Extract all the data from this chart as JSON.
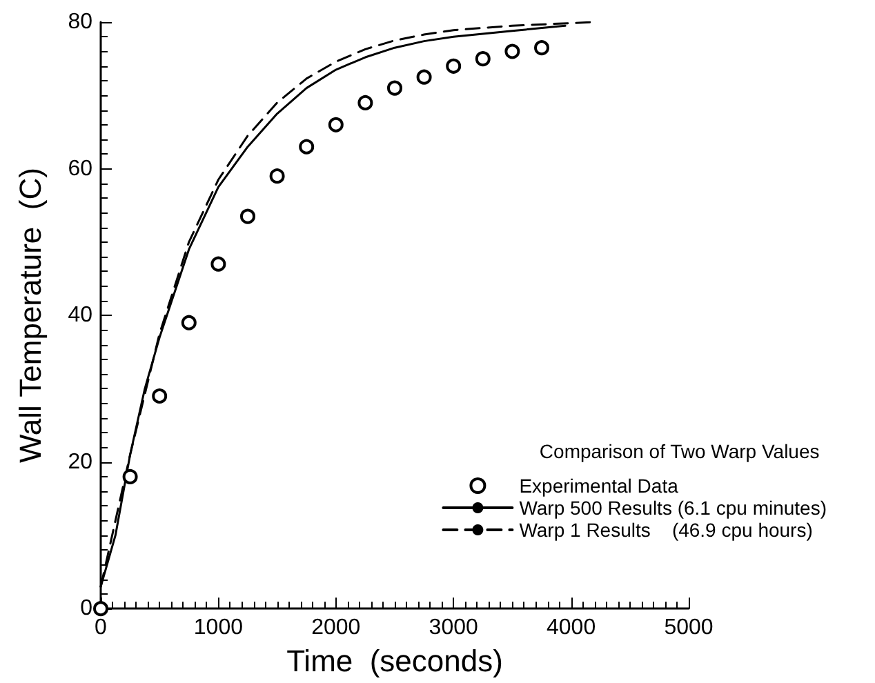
{
  "chart_data": {
    "type": "line",
    "xlabel": "Time  (seconds)",
    "ylabel": "Wall Temperature  (C)",
    "legend_title": "Comparison of Two Warp Values",
    "xlim": [
      0,
      5000
    ],
    "xticks": [
      0,
      1000,
      2000,
      3000,
      4000,
      5000
    ],
    "ylim": [
      0,
      80
    ],
    "yticks": [
      0,
      20,
      40,
      60,
      80
    ],
    "grid": false,
    "legend": "right",
    "series": [
      {
        "name": "Experimental Data",
        "type": "scatter",
        "marker": "circle",
        "color": "#000000",
        "x": [
          0,
          250,
          500,
          750,
          1000,
          1250,
          1500,
          1750,
          2000,
          2250,
          2500,
          2750,
          3000,
          3250,
          3500,
          3750
        ],
        "values": [
          0,
          18,
          29,
          39,
          47,
          53.5,
          59,
          63,
          66,
          69,
          71,
          72.5,
          74,
          75,
          76,
          76.5
        ]
      },
      {
        "name": "Warp 500 Results (6.1 cpu minutes)",
        "line_style": "solid",
        "color": "#000000",
        "x": [
          0,
          125,
          250,
          375,
          500,
          750,
          1000,
          1250,
          1500,
          1750,
          2000,
          2250,
          2500,
          2750,
          3000,
          3500,
          3950
        ],
        "values": [
          3,
          10,
          21,
          30,
          37,
          49,
          57.5,
          63,
          67.5,
          71,
          73.5,
          75.2,
          76.5,
          77.4,
          78,
          78.8,
          79.5
        ]
      },
      {
        "name": "Warp 1 Results    (46.9 cpu hours)",
        "line_style": "dashed",
        "color": "#000000",
        "x": [
          0,
          250,
          500,
          750,
          1000,
          1250,
          1500,
          1750,
          2000,
          2250,
          2500,
          2750,
          3000,
          3500,
          4200
        ],
        "values": [
          3,
          21,
          37.5,
          50,
          58.5,
          64.5,
          69,
          72.3,
          74.6,
          76.3,
          77.5,
          78.3,
          78.9,
          79.5,
          80
        ]
      }
    ]
  }
}
